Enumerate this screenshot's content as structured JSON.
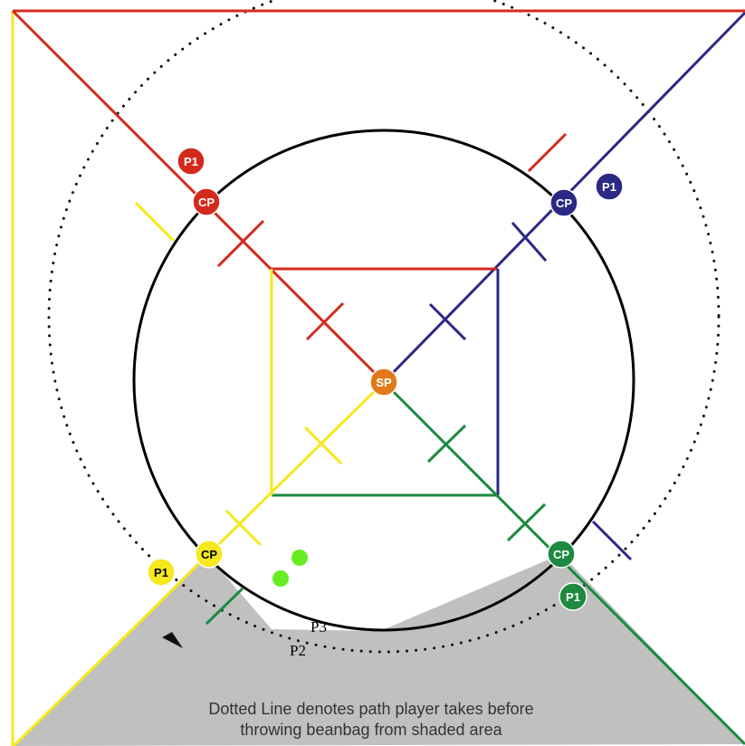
{
  "colors": {
    "red": "#d42a1e",
    "navy": "#2b2886",
    "yellow": "#f6e81c",
    "green": "#1d8a3f",
    "orange": "#e07a1c",
    "shaded": "#c0c0c0",
    "bright_green": "#66ee22"
  },
  "nodes": {
    "start": "SP",
    "checkpoint_red": "CP",
    "checkpoint_navy": "CP",
    "checkpoint_yellow": "CP",
    "checkpoint_green": "CP",
    "player_red": "P1",
    "player_navy": "P1",
    "player_yellow": "P1",
    "player_green": "P1"
  },
  "labels": {
    "p3": "P3",
    "p2": "P2"
  },
  "caption": {
    "line1": "Dotted Line denotes path player takes before",
    "line2": "throwing beanbag from shaded area"
  }
}
